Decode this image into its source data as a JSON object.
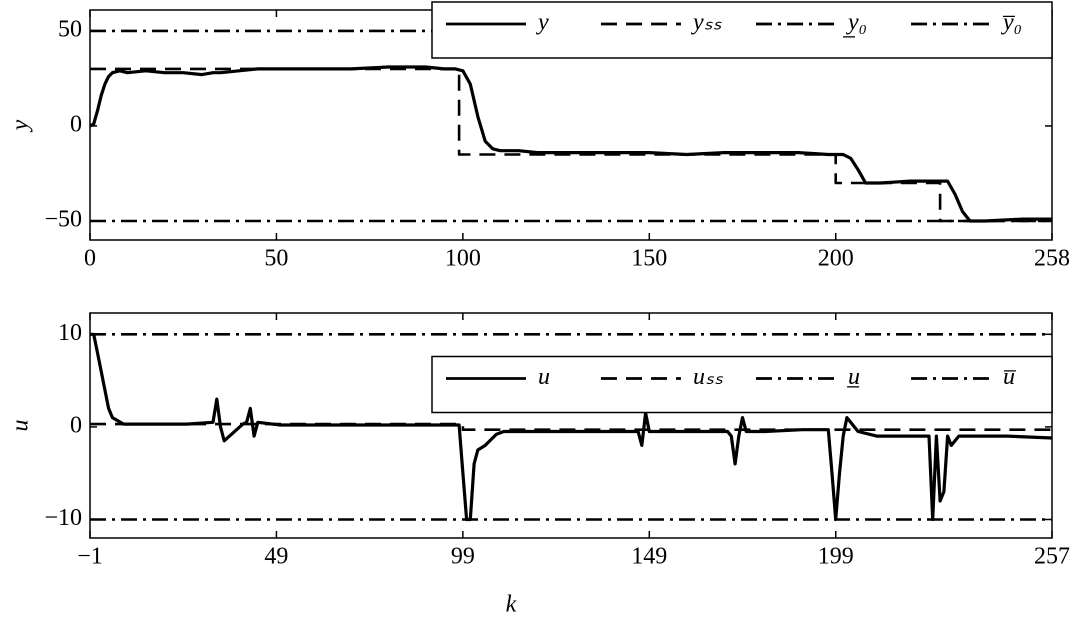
{
  "chart_data": [
    {
      "type": "line",
      "ylabel": "y",
      "xlim": [
        0,
        258
      ],
      "ylim": [
        -60,
        61
      ],
      "xticks": [
        0,
        50,
        100,
        150,
        200,
        258
      ],
      "yticks": [
        {
          "value": -50,
          "label": "−50"
        },
        0,
        50
      ],
      "legend": "upper right",
      "series": [
        {
          "name": "y",
          "color": "#000000",
          "line_style": "solid",
          "x": [
            0,
            1,
            2,
            3,
            4,
            5,
            6,
            8,
            10,
            15,
            20,
            25,
            30,
            33,
            35,
            40,
            45,
            50,
            60,
            70,
            80,
            90,
            95,
            98,
            100,
            102,
            104,
            106,
            108,
            110,
            115,
            120,
            130,
            140,
            150,
            160,
            170,
            180,
            190,
            198,
            200,
            202,
            204,
            206,
            208,
            212,
            220,
            228,
            230,
            232,
            234,
            236,
            240,
            250,
            258
          ],
          "values": [
            0,
            1,
            8,
            16,
            22,
            26,
            28,
            29,
            28,
            29,
            28,
            28,
            27,
            28,
            28,
            29,
            30,
            30,
            30,
            30,
            31,
            31,
            30,
            30,
            29,
            22,
            5,
            -8,
            -12,
            -13,
            -13,
            -14,
            -14,
            -14,
            -14,
            -15,
            -14,
            -14,
            -14,
            -15,
            -15,
            -15,
            -17,
            -23,
            -30,
            -30,
            -29,
            -29,
            -29,
            -36,
            -45,
            -50,
            -50,
            -49,
            -49
          ]
        },
        {
          "name": "yₛₛ",
          "color": "#000000",
          "line_style": "dashed",
          "x": [
            0,
            99,
            99,
            200,
            200,
            228,
            228,
            258
          ],
          "values": [
            30,
            30,
            -15,
            -15,
            -30,
            -30,
            -50,
            -50
          ]
        },
        {
          "name": "y̲₀",
          "color": "#000000",
          "line_style": "dashdot",
          "x": [
            0,
            258
          ],
          "values": [
            -50,
            -50
          ]
        },
        {
          "name": "y̅₀",
          "color": "#000000",
          "line_style": "dashdot",
          "x": [
            0,
            258
          ],
          "values": [
            50,
            50
          ]
        }
      ]
    },
    {
      "type": "line",
      "ylabel": "u",
      "xlabel": "k",
      "xlim": [
        -1,
        257
      ],
      "ylim": [
        -12,
        12.3
      ],
      "xticks": [
        {
          "value": -1,
          "label": "−1"
        },
        49,
        99,
        149,
        199,
        257
      ],
      "yticks": [
        {
          "value": -10,
          "label": "−10"
        },
        0,
        10
      ],
      "legend": "center right",
      "series": [
        {
          "name": "u",
          "color": "#000000",
          "line_style": "solid",
          "x": [
            -1,
            0,
            1,
            2,
            3,
            4,
            5,
            8,
            15,
            25,
            32,
            33,
            34,
            35,
            40,
            41,
            42,
            43,
            44,
            50,
            60,
            70,
            80,
            90,
            98,
            99,
            100,
            101,
            102,
            103,
            105,
            108,
            110,
            120,
            130,
            140,
            146,
            147,
            148,
            149,
            150,
            160,
            170,
            171,
            172,
            173,
            174,
            175,
            180,
            190,
            197,
            198,
            199,
            200,
            201,
            202,
            205,
            210,
            220,
            224,
            225,
            226,
            227,
            228,
            229,
            230,
            232,
            235,
            245,
            257
          ],
          "values": [
            10,
            10,
            8,
            6,
            4,
            2,
            1,
            0.3,
            0.3,
            0.3,
            0.5,
            3,
            0,
            -1.5,
            0.3,
            0.5,
            2,
            -1,
            0.5,
            0.2,
            0.2,
            0.2,
            0.2,
            0.2,
            0.2,
            -5,
            -10,
            -10,
            -4,
            -2.5,
            -2,
            -0.8,
            -0.5,
            -0.5,
            -0.5,
            -0.5,
            -0.5,
            -2,
            1.5,
            -0.5,
            -0.5,
            -0.5,
            -0.5,
            -1,
            -4,
            -1,
            1,
            -0.5,
            -0.5,
            -0.3,
            -0.3,
            -5,
            -10,
            -5,
            -1,
            1,
            -0.5,
            -1,
            -1,
            -1,
            -10,
            -1,
            -8,
            -7,
            -1,
            -2,
            -1,
            -1,
            -1,
            -1.2
          ]
        },
        {
          "name": "uₛₛ",
          "color": "#000000",
          "line_style": "dashed",
          "x": [
            -1,
            99,
            99,
            257
          ],
          "values": [
            0.3,
            0.3,
            -0.3,
            -0.3
          ]
        },
        {
          "name": "u̲",
          "color": "#000000",
          "line_style": "dashdot",
          "x": [
            -1,
            257
          ],
          "values": [
            -10,
            -10
          ]
        },
        {
          "name": "u̅",
          "color": "#000000",
          "line_style": "dashdot",
          "x": [
            -1,
            257
          ],
          "values": [
            10,
            10
          ]
        }
      ]
    }
  ]
}
